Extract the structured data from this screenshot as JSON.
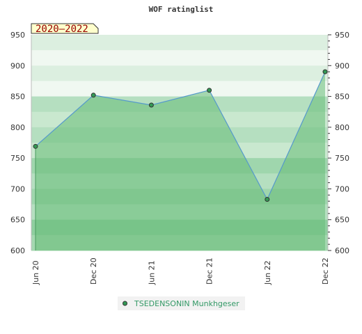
{
  "chart_data": {
    "type": "area",
    "title": "WOF ratinglist",
    "period_badge": "2020–2022",
    "x": [
      "Jun 20",
      "Dec 20",
      "Jun 21",
      "Dec 21",
      "Jun 22",
      "Dec 22"
    ],
    "series": [
      {
        "name": "TSEDENSONIN Munkhgeser",
        "values": [
          769,
          852,
          836,
          860,
          683,
          890
        ]
      }
    ],
    "ylim": [
      600,
      950
    ],
    "yticks": [
      600,
      650,
      700,
      750,
      800,
      850,
      900,
      950
    ],
    "grid": false,
    "legend_position": "bottom",
    "colors": {
      "line": "#5599cc",
      "marker_fill": "#339955",
      "area_fill": "#66bb77",
      "legend_text": "#339966",
      "badge_bg": "#ffffcc",
      "badge_text": "#990000"
    }
  }
}
